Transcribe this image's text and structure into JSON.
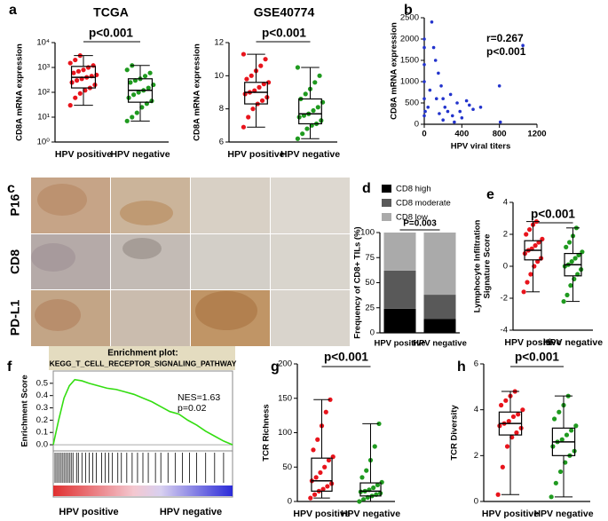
{
  "chart_data": [
    {
      "type": "box",
      "panel_label": "a",
      "title": "TCGA",
      "ylabel": "CD8A mRNA expression",
      "annotation": "p<0.001",
      "log": true,
      "categories": [
        "HPV positive",
        "HPV negative"
      ],
      "colors": [
        "#e8141c",
        "#1f9a1f"
      ],
      "ylim": [
        1,
        10000
      ],
      "yticks": [
        {
          "value": 1,
          "label": "10⁰"
        },
        {
          "value": 10,
          "label": "10¹"
        },
        {
          "value": 100,
          "label": "10²"
        },
        {
          "value": 1000,
          "label": "10³"
        },
        {
          "value": 10000,
          "label": "10⁴"
        }
      ],
      "boxes": [
        {
          "min": 30,
          "q1": 150,
          "median": 400,
          "q3": 1100,
          "max": 3000,
          "points": [
            30,
            60,
            90,
            120,
            150,
            200,
            250,
            300,
            350,
            400,
            450,
            500,
            600,
            700,
            800,
            1000,
            1200,
            1500,
            2000,
            3000
          ]
        },
        {
          "min": 7,
          "q1": 40,
          "median": 120,
          "q3": 350,
          "max": 1200,
          "points": [
            7,
            10,
            15,
            25,
            35,
            45,
            60,
            80,
            100,
            120,
            150,
            200,
            250,
            300,
            350,
            450,
            600,
            800,
            1200
          ]
        }
      ]
    },
    {
      "type": "box",
      "title": "GSE40774",
      "ylabel": "CD8A mRNA expression",
      "annotation": "p<0.001",
      "categories": [
        "HPV positive",
        "HPV negative"
      ],
      "colors": [
        "#e8141c",
        "#1f9a1f"
      ],
      "ylim": [
        6,
        12
      ],
      "yticks": [
        6,
        8,
        10,
        12
      ],
      "boxes": [
        {
          "min": 6.9,
          "q1": 8.3,
          "median": 9.0,
          "q3": 9.6,
          "max": 11.3,
          "points": [
            6.9,
            7.5,
            8.0,
            8.3,
            8.5,
            8.7,
            8.9,
            9.0,
            9.1,
            9.3,
            9.5,
            9.6,
            9.8,
            10.0,
            10.3,
            10.6,
            11.0,
            11.3
          ]
        },
        {
          "min": 6.2,
          "q1": 7.1,
          "median": 7.7,
          "q3": 8.6,
          "max": 10.5,
          "points": [
            6.2,
            6.5,
            6.8,
            7.0,
            7.1,
            7.3,
            7.5,
            7.6,
            7.7,
            7.9,
            8.1,
            8.4,
            8.6,
            8.9,
            9.2,
            9.6,
            10.0,
            10.5
          ]
        }
      ]
    },
    {
      "type": "scatter",
      "panel_label": "b",
      "ylabel": "CD8A mRNA expression",
      "xlabel": "HPV viral titers",
      "annotations": [
        "r=0.267",
        "p<0.001"
      ],
      "color": "#2233cc",
      "xlim": [
        0,
        1200
      ],
      "xticks": [
        0,
        400,
        800,
        1200
      ],
      "ylim": [
        0,
        2500
      ],
      "yticks": [
        0,
        500,
        1000,
        1500,
        2000,
        2500
      ],
      "x": [
        0,
        0,
        0,
        0,
        0,
        0,
        10,
        40,
        60,
        80,
        100,
        120,
        130,
        150,
        160,
        180,
        200,
        200,
        220,
        250,
        280,
        300,
        320,
        350,
        380,
        400,
        450,
        480,
        520,
        600,
        800,
        810,
        1050
      ],
      "values": [
        200,
        600,
        1000,
        1400,
        1800,
        2000,
        300,
        400,
        800,
        2400,
        1800,
        1500,
        600,
        1200,
        250,
        900,
        600,
        100,
        400,
        300,
        700,
        200,
        50,
        500,
        300,
        150,
        550,
        450,
        350,
        400,
        900,
        50,
        1850
      ]
    },
    {
      "type": "stacked_bar",
      "panel_label": "d",
      "ylabel": "Frequency of CD8+ TILs (%)",
      "annotation": "P=0.003",
      "categories": [
        "HPV positive",
        "HPV negative"
      ],
      "ylim": [
        0,
        100
      ],
      "yticks": [
        0,
        25,
        50,
        75,
        100
      ],
      "series": [
        {
          "name": "CD8 high",
          "color": "#000000",
          "values": [
            24,
            14
          ]
        },
        {
          "name": "CD8 moderate",
          "color": "#595959",
          "values": [
            38,
            24
          ]
        },
        {
          "name": "CD8 low",
          "color": "#aaaaaa",
          "values": [
            38,
            62
          ]
        }
      ]
    },
    {
      "type": "box",
      "panel_label": "e",
      "ylabel": [
        "Lymphocyte Infiltration",
        "Signature Score"
      ],
      "annotation": "p<0.001",
      "categories": [
        "HPV positive",
        "HPV negative"
      ],
      "colors": [
        "#e8141c",
        "#1f9a1f"
      ],
      "ylim": [
        -4,
        4
      ],
      "yticks": [
        -4,
        -2,
        0,
        2,
        4
      ],
      "boxes": [
        {
          "min": -1.6,
          "q1": 0.4,
          "median": 1.0,
          "q3": 1.6,
          "max": 2.8,
          "points": [
            -1.6,
            -1.0,
            -0.5,
            0,
            0.3,
            0.5,
            0.8,
            1.0,
            1.1,
            1.3,
            1.5,
            1.7,
            2.0,
            2.3,
            2.6,
            2.8
          ]
        },
        {
          "min": -2.2,
          "q1": -0.6,
          "median": 0.1,
          "q3": 0.8,
          "max": 2.4,
          "points": [
            -2.2,
            -1.8,
            -1.2,
            -0.8,
            -0.5,
            -0.2,
            0,
            0.1,
            0.3,
            0.5,
            0.7,
            0.9,
            1.2,
            1.5,
            1.9,
            2.4
          ]
        }
      ]
    },
    {
      "type": "line",
      "panel_label": "f",
      "title": "Enrichment plot:",
      "subtitle": "KEGG_T_CELL_RECEPTOR_SIGNALING_PATHWAY",
      "ylabel": "Enrichment Score",
      "annotations": [
        "NES=1.63",
        "p=0.02"
      ],
      "xlabels": [
        "HPV positive",
        "HPV negative"
      ],
      "color": "#33dd11",
      "xlim": [
        0,
        100
      ],
      "ylim": [
        -0.05,
        0.6
      ],
      "yticks": [
        {
          "value": 0,
          "label": "0.0"
        },
        {
          "value": 0.1,
          "label": "0.1"
        },
        {
          "value": 0.2,
          "label": "0.2"
        },
        {
          "value": 0.3,
          "label": "0.3"
        },
        {
          "value": 0.4,
          "label": "0.4"
        },
        {
          "value": 0.5,
          "label": "0.5"
        }
      ],
      "x": [
        0,
        3,
        6,
        9,
        12,
        16,
        20,
        25,
        30,
        35,
        40,
        45,
        50,
        55,
        60,
        65,
        70,
        75,
        80,
        85,
        90,
        95,
        100
      ],
      "values": [
        0,
        0.2,
        0.38,
        0.48,
        0.53,
        0.52,
        0.5,
        0.48,
        0.46,
        0.45,
        0.43,
        0.41,
        0.38,
        0.35,
        0.31,
        0.27,
        0.25,
        0.2,
        0.16,
        0.11,
        0.07,
        0.03,
        0
      ],
      "hits": [
        1,
        2,
        3,
        4,
        5,
        6,
        7,
        8,
        9,
        10,
        11,
        13,
        14,
        16,
        18,
        20,
        22,
        24,
        27,
        29,
        31,
        33,
        36,
        38,
        41,
        44,
        47,
        50,
        53,
        57,
        60,
        64,
        68,
        72,
        76,
        80,
        85,
        90,
        95
      ]
    },
    {
      "type": "box",
      "panel_label": "g",
      "ylabel": "TCR Richness",
      "annotation": "p<0.001",
      "categories": [
        "HPV positive",
        "HPV negative"
      ],
      "colors": [
        "#e8141c",
        "#1f9a1f"
      ],
      "ylim": [
        0,
        200
      ],
      "yticks": [
        0,
        50,
        100,
        150,
        200
      ],
      "boxes": [
        {
          "min": 5,
          "q1": 15,
          "median": 30,
          "q3": 63,
          "max": 148,
          "points": [
            5,
            10,
            15,
            18,
            22,
            26,
            30,
            35,
            42,
            50,
            60,
            65,
            75,
            90,
            110,
            130,
            148
          ]
        },
        {
          "min": 0,
          "q1": 8,
          "median": 15,
          "q3": 27,
          "max": 113,
          "points": [
            0,
            3,
            6,
            8,
            10,
            12,
            14,
            15,
            17,
            20,
            24,
            28,
            35,
            45,
            60,
            80,
            113
          ]
        }
      ]
    },
    {
      "type": "box",
      "panel_label": "h",
      "ylabel": "TCR Diversity",
      "annotation": "p<0.001",
      "categories": [
        "HPV positive",
        "HPV negative"
      ],
      "colors": [
        "#e8141c",
        "#1f9a1f"
      ],
      "ylim": [
        0,
        6
      ],
      "yticks": [
        0,
        2,
        4,
        6
      ],
      "boxes": [
        {
          "min": 0.3,
          "q1": 2.9,
          "median": 3.4,
          "q3": 3.9,
          "max": 4.8,
          "points": [
            0.3,
            1.5,
            2.4,
            2.8,
            3.0,
            3.2,
            3.3,
            3.4,
            3.5,
            3.7,
            3.8,
            4.0,
            4.2,
            4.4,
            4.6,
            4.8
          ]
        },
        {
          "min": 0.2,
          "q1": 2.0,
          "median": 2.6,
          "q3": 3.2,
          "max": 4.6,
          "points": [
            0.2,
            0.8,
            1.3,
            1.7,
            2.0,
            2.2,
            2.4,
            2.6,
            2.7,
            2.9,
            3.1,
            3.3,
            3.6,
            3.9,
            4.2,
            4.6
          ]
        }
      ]
    }
  ],
  "ihc_panel": {
    "panel_label": "c",
    "rows": [
      "P16",
      "CD8",
      "PD-L1"
    ]
  }
}
